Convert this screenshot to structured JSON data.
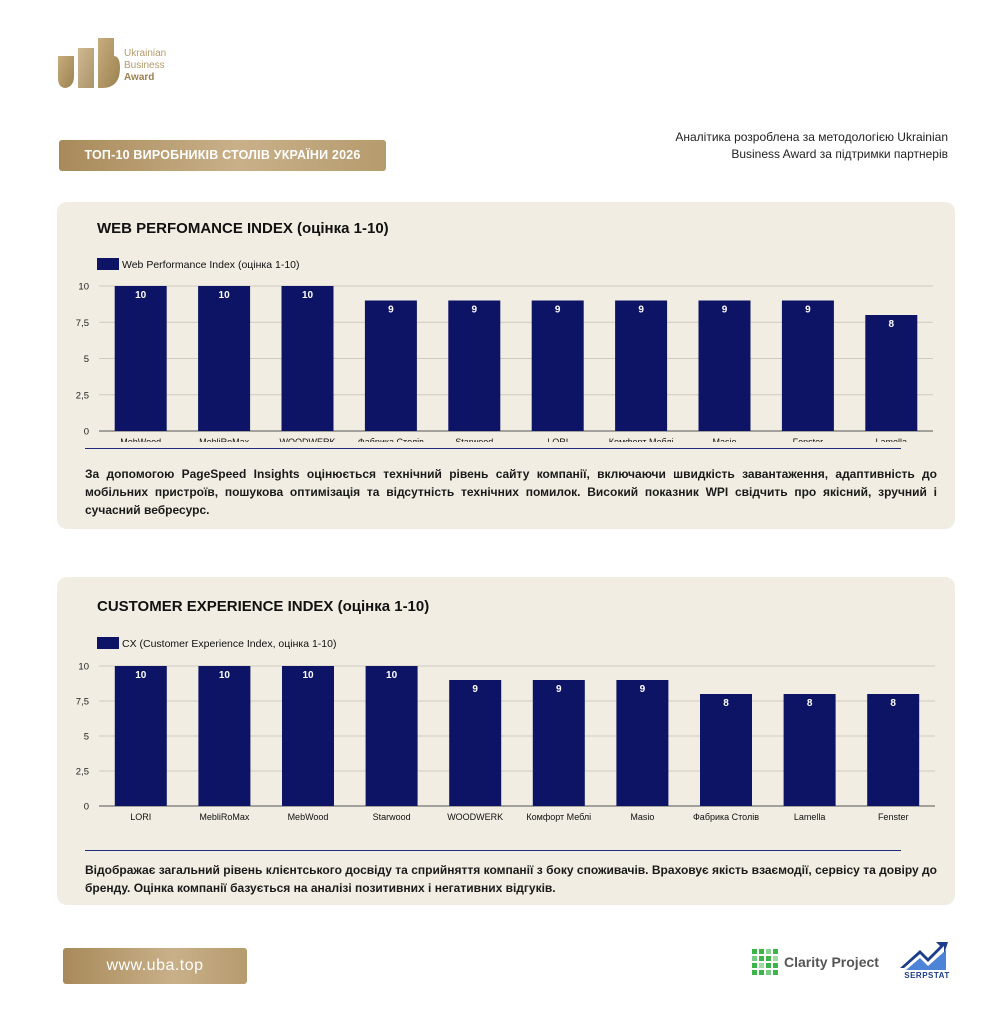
{
  "brand": {
    "logo_line1": "Ukrainian",
    "logo_line2": "Business",
    "logo_line3": "Award",
    "gold": "#b39a6a"
  },
  "header": {
    "title": "ТОП-10 ВИРОБНИКІВ СТОЛІВ УКРАЇНИ 2026",
    "attribution_line1": "Аналітика розроблена за методологією Ukrainian",
    "attribution_line2": "Business Award за підтримки партнерів"
  },
  "footer": {
    "url": "www.uba.top",
    "partner1": "Clarity Project",
    "partner2": "SERPSTAT"
  },
  "sections": [
    {
      "title": "WEB PERFOMANCE INDEX (оцінка 1-10)",
      "description": "За допомогою PageSpeed Insights оцінюється технічний рівень сайту компанії, включаючи швидкість завантаження, адаптивність до мобільних пристроїв, пошукова оптимізація та відсутність технічних помилок. Високий показник WPI свідчить про якісний, зручний і сучасний вебресурс."
    },
    {
      "title": "CUSTOMER EXPERIENCE INDEX (оцінка 1-10)",
      "description": "Відображає загальний рівень клієнтського досвіду та сприйняття компанії з боку споживачів. Враховує якість взаємодії, сервісу та довіру до бренду. Оцінка компанії базується на аналізі позитивних і негативних відгуків."
    }
  ],
  "chart_data": [
    {
      "type": "bar",
      "categories": [
        "MebWood",
        "MebliRoMax",
        "WOODWERK",
        "Фабрика Столів",
        "Starwood",
        "LORI",
        "Комфорт Меблі",
        "Masio",
        "Fenster",
        "Lamella"
      ],
      "series": [
        {
          "name": "Web Performance Index (оцінка 1-10)",
          "values": [
            10,
            10,
            10,
            9,
            9,
            9,
            9,
            9,
            9,
            8
          ],
          "color": "#0d1466"
        }
      ],
      "yticks": [
        "0",
        "2,5",
        "5",
        "7,5",
        "10"
      ],
      "ylim": [
        0,
        10
      ],
      "grid": true,
      "legend": "top-left",
      "data_labels": true
    },
    {
      "type": "bar",
      "categories": [
        "LORI",
        "MebliRoMax",
        "MebWood",
        "Starwood",
        "WOODWERK",
        "Комфорт Меблі",
        "Masio",
        "Фабрика Столів",
        "Lamella",
        "Fenster"
      ],
      "series": [
        {
          "name": "CX (Customer Experience Index, оцінка 1-10)",
          "values": [
            10,
            10,
            10,
            10,
            9,
            9,
            9,
            8,
            8,
            8
          ],
          "color": "#0d1466"
        }
      ],
      "yticks": [
        "0",
        "2,5",
        "5",
        "7,5",
        "10"
      ],
      "ylim": [
        0,
        10
      ],
      "grid": true,
      "legend": "top-left",
      "data_labels": true
    }
  ]
}
